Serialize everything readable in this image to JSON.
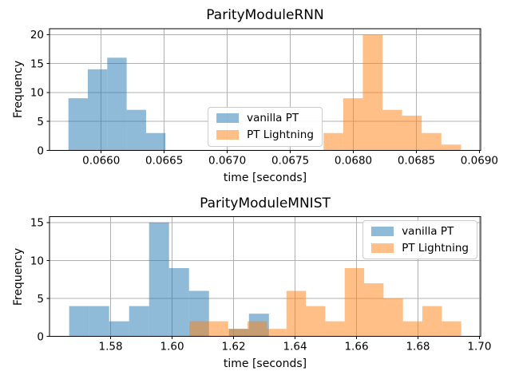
{
  "figure": {
    "background": "#ffffff",
    "grid_color": "#b0b0b0",
    "spine_color": "#000000",
    "text_color": "#000000"
  },
  "chart_data": [
    {
      "type": "bar",
      "subtype": "overlapping-histogram",
      "title": "ParityModuleRNN",
      "xlabel": "time [seconds]",
      "ylabel": "Frequency",
      "xlim": [
        0.06559,
        0.06901
      ],
      "ylim": [
        0,
        21
      ],
      "grid": true,
      "legend_position": "center",
      "xticks": [
        0.066,
        0.0665,
        0.067,
        0.0675,
        0.068,
        0.0685,
        0.069
      ],
      "xtick_labels": [
        "0.0660",
        "0.0665",
        "0.0670",
        "0.0675",
        "0.0680",
        "0.0685",
        "0.0690"
      ],
      "yticks": [
        0,
        5,
        10,
        15,
        20
      ],
      "ytick_labels": [
        "0",
        "5",
        "10",
        "15",
        "20"
      ],
      "series": [
        {
          "name": "vanilla PT",
          "color": "#1f77b4",
          "fill_opacity": 0.5,
          "bin_start": 0.06574,
          "bin_width": 0.000154,
          "counts": [
            9,
            14,
            16,
            7,
            3
          ]
        },
        {
          "name": "PT Lightning",
          "color": "#ff7f0e",
          "fill_opacity": 0.5,
          "bin_start": 0.067764,
          "bin_width": 0.0001557,
          "counts": [
            3,
            9,
            20,
            7,
            6,
            3,
            1
          ]
        }
      ]
    },
    {
      "type": "bar",
      "subtype": "overlapping-histogram",
      "title": "ParityModuleMNIST",
      "xlabel": "time [seconds]",
      "ylabel": "Frequency",
      "xlim": [
        1.5601,
        1.7004
      ],
      "ylim": [
        0,
        15.75
      ],
      "grid": true,
      "legend_position": "upper right",
      "xticks": [
        1.58,
        1.6,
        1.62,
        1.64,
        1.66,
        1.68,
        1.7
      ],
      "xtick_labels": [
        "1.58",
        "1.60",
        "1.62",
        "1.64",
        "1.66",
        "1.68",
        "1.70"
      ],
      "yticks": [
        0,
        5,
        10,
        15
      ],
      "ytick_labels": [
        "0",
        "5",
        "10",
        "15"
      ],
      "series": [
        {
          "name": "vanilla PT",
          "color": "#1f77b4",
          "fill_opacity": 0.5,
          "bin_start": 1.5665,
          "bin_width": 0.0065,
          "counts": [
            4,
            4,
            2,
            4,
            15,
            9,
            6,
            0,
            1,
            3
          ]
        },
        {
          "name": "PT Lightning",
          "color": "#ff7f0e",
          "fill_opacity": 0.5,
          "bin_start": 1.6056,
          "bin_width": 0.00632,
          "counts": [
            2,
            2,
            1,
            2,
            1,
            6,
            4,
            2,
            9,
            7,
            5,
            2,
            4,
            2
          ]
        }
      ]
    }
  ]
}
